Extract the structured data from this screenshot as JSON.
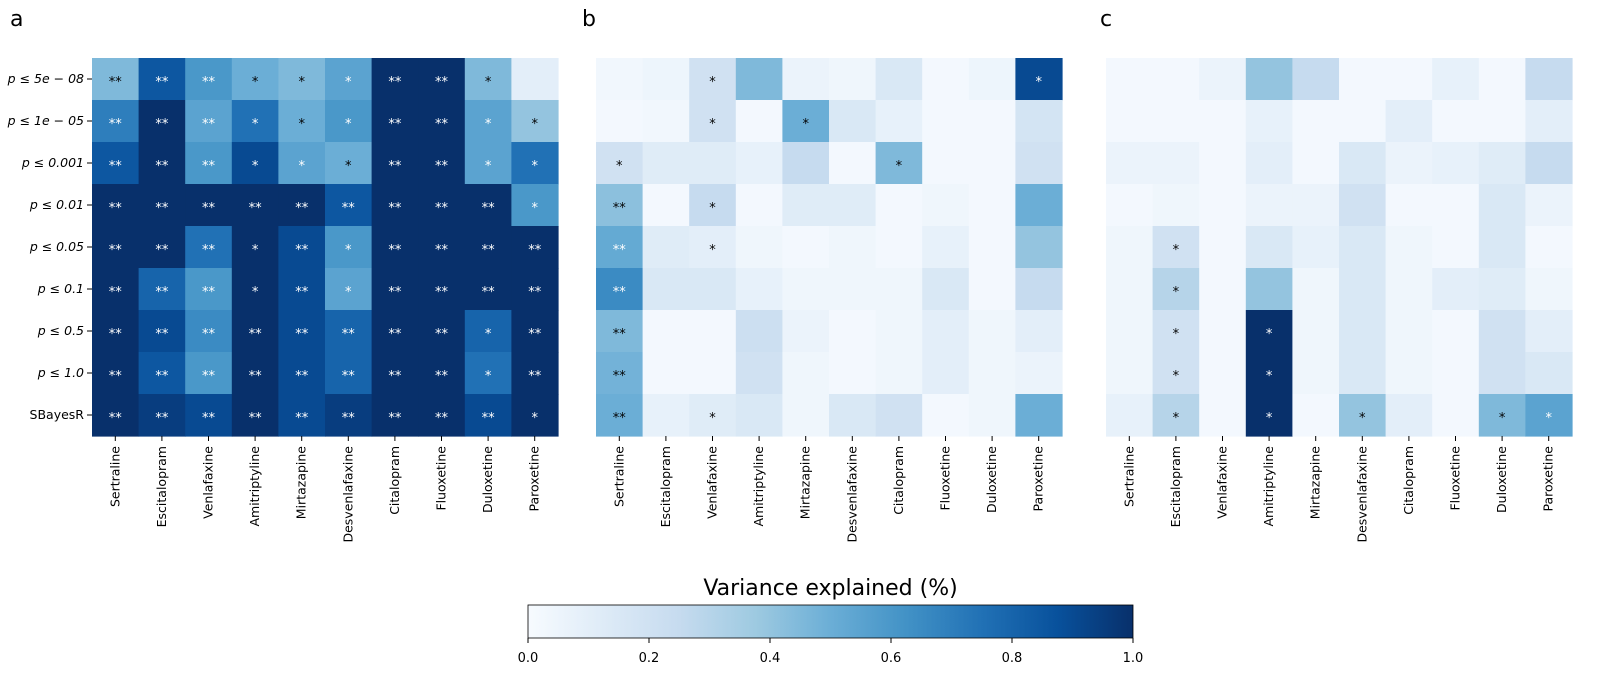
{
  "panel_labels": [
    "a",
    "b",
    "c"
  ],
  "colorbar": {
    "title": "Variance explained (%)",
    "ticks": [
      "0.0",
      "0.2",
      "0.4",
      "0.6",
      "0.8",
      "1.0"
    ],
    "min": 0,
    "max": 1,
    "colormap": [
      "#f7fbff",
      "#deebf7",
      "#c6dbef",
      "#9ecae1",
      "#6baed6",
      "#4292c6",
      "#2171b5",
      "#08519c",
      "#08306b"
    ]
  },
  "chart_data": [
    {
      "type": "heatmap",
      "panel": "a",
      "columns": [
        "Sertraline",
        "Escitalopram",
        "Venlafaxine",
        "Amitriptyline",
        "Mirtazapine",
        "Desvenlafaxine",
        "Citalopram",
        "Fluoxetine",
        "Duloxetine",
        "Paroxetine"
      ],
      "rows": [
        "p ≤ 5e − 08",
        "p ≤ 1e − 05",
        "p ≤ 0.001",
        "p ≤ 0.01",
        "p ≤ 0.05",
        "p ≤ 0.1",
        "p ≤ 0.5",
        "p ≤ 1.0",
        "SBayesR"
      ],
      "values": [
        [
          0.45,
          0.85,
          0.6,
          0.5,
          0.45,
          0.55,
          1.0,
          1.0,
          0.45,
          0.1
        ],
        [
          0.7,
          1.0,
          0.55,
          0.75,
          0.5,
          0.6,
          1.0,
          1.0,
          0.55,
          0.4
        ],
        [
          0.85,
          1.0,
          0.6,
          0.9,
          0.55,
          0.5,
          1.0,
          1.0,
          0.55,
          0.75
        ],
        [
          1.0,
          1.0,
          1.0,
          1.0,
          1.0,
          0.85,
          1.0,
          1.0,
          1.0,
          0.6
        ],
        [
          1.0,
          1.0,
          0.75,
          1.0,
          0.9,
          0.6,
          1.0,
          1.0,
          1.0,
          1.0
        ],
        [
          1.0,
          0.8,
          0.6,
          1.0,
          0.9,
          0.55,
          1.0,
          1.0,
          1.0,
          1.0
        ],
        [
          1.0,
          0.9,
          0.65,
          1.0,
          0.9,
          0.8,
          1.0,
          1.0,
          0.8,
          1.0
        ],
        [
          1.0,
          0.85,
          0.6,
          1.0,
          0.9,
          0.8,
          1.0,
          1.0,
          0.75,
          1.0
        ],
        [
          1.0,
          0.95,
          0.9,
          1.0,
          0.9,
          0.95,
          1.0,
          1.0,
          0.9,
          1.0
        ]
      ],
      "annotations": [
        [
          "**",
          "**",
          "**",
          "*",
          "*",
          "*",
          "**",
          "**",
          "*",
          ""
        ],
        [
          "**",
          "**",
          "**",
          "*",
          "*",
          "*",
          "**",
          "**",
          "*",
          "*"
        ],
        [
          "**",
          "**",
          "**",
          "*",
          "*",
          "*",
          "**",
          "**",
          "*",
          "*"
        ],
        [
          "**",
          "**",
          "**",
          "**",
          "**",
          "**",
          "**",
          "**",
          "**",
          "*"
        ],
        [
          "**",
          "**",
          "**",
          "*",
          "**",
          "*",
          "**",
          "**",
          "**",
          "**"
        ],
        [
          "**",
          "**",
          "**",
          "*",
          "**",
          "*",
          "**",
          "**",
          "**",
          "**"
        ],
        [
          "**",
          "**",
          "**",
          "**",
          "**",
          "**",
          "**",
          "**",
          "*",
          "**"
        ],
        [
          "**",
          "**",
          "**",
          "**",
          "**",
          "**",
          "**",
          "**",
          "*",
          "**"
        ],
        [
          "**",
          "**",
          "**",
          "**",
          "**",
          "**",
          "**",
          "**",
          "**",
          "*"
        ]
      ]
    },
    {
      "type": "heatmap",
      "panel": "b",
      "columns": [
        "Sertraline",
        "Escitalopram",
        "Venlafaxine",
        "Amitriptyline",
        "Mirtazapine",
        "Desvenlafaxine",
        "Citalopram",
        "Fluoxetine",
        "Duloxetine",
        "Paroxetine"
      ],
      "rows": [
        "p ≤ 5e − 08",
        "p ≤ 1e − 05",
        "p ≤ 0.001",
        "p ≤ 0.01",
        "p ≤ 0.05",
        "p ≤ 0.1",
        "p ≤ 0.5",
        "p ≤ 1.0",
        "SBayesR"
      ],
      "values": [
        [
          0.03,
          0.05,
          0.2,
          0.45,
          0.06,
          0.04,
          0.15,
          0.02,
          0.05,
          0.9
        ],
        [
          0.02,
          0.03,
          0.2,
          0.02,
          0.5,
          0.15,
          0.08,
          0.02,
          0.02,
          0.18
        ],
        [
          0.2,
          0.12,
          0.12,
          0.08,
          0.25,
          0.02,
          0.45,
          0.02,
          0.02,
          0.2
        ],
        [
          0.42,
          0.02,
          0.25,
          0.02,
          0.12,
          0.12,
          0.02,
          0.04,
          0.02,
          0.5
        ],
        [
          0.52,
          0.12,
          0.1,
          0.04,
          0.02,
          0.04,
          0.02,
          0.08,
          0.02,
          0.4
        ],
        [
          0.65,
          0.15,
          0.15,
          0.08,
          0.04,
          0.04,
          0.04,
          0.15,
          0.02,
          0.25
        ],
        [
          0.45,
          0.02,
          0.02,
          0.22,
          0.06,
          0.02,
          0.04,
          0.1,
          0.04,
          0.1
        ],
        [
          0.48,
          0.02,
          0.02,
          0.2,
          0.04,
          0.02,
          0.04,
          0.1,
          0.04,
          0.06
        ],
        [
          0.5,
          0.08,
          0.12,
          0.15,
          0.04,
          0.15,
          0.2,
          0.02,
          0.04,
          0.5
        ]
      ],
      "annotations": [
        [
          "",
          "",
          "*",
          "",
          "",
          "",
          "",
          "",
          "",
          "*"
        ],
        [
          "",
          "",
          "*",
          "",
          "*",
          "",
          "",
          "",
          "",
          ""
        ],
        [
          "*",
          "",
          "",
          "",
          "",
          "",
          "*",
          "",
          "",
          ""
        ],
        [
          "**",
          "",
          "*",
          "",
          "",
          "",
          "",
          "",
          "",
          ""
        ],
        [
          "**",
          "",
          "*",
          "",
          "",
          "",
          "",
          "",
          "",
          ""
        ],
        [
          "**",
          "",
          "",
          "",
          "",
          "",
          "",
          "",
          "",
          ""
        ],
        [
          "**",
          "",
          "",
          "",
          "",
          "",
          "",
          "",
          "",
          ""
        ],
        [
          "**",
          "",
          "",
          "",
          "",
          "",
          "",
          "",
          "",
          ""
        ],
        [
          "**",
          "",
          "*",
          "",
          "",
          "",
          "",
          "",
          "",
          ""
        ]
      ]
    },
    {
      "type": "heatmap",
      "panel": "c",
      "columns": [
        "Sertraline",
        "Escitalopram",
        "Venlafaxine",
        "Amitriptyline",
        "Mirtazapine",
        "Desvenlafaxine",
        "Citalopram",
        "Fluoxetine",
        "Duloxetine",
        "Paroxetine"
      ],
      "rows": [
        "p ≤ 5e − 08",
        "p ≤ 1e − 05",
        "p ≤ 0.001",
        "p ≤ 0.01",
        "p ≤ 0.05",
        "p ≤ 0.1",
        "p ≤ 0.5",
        "p ≤ 1.0",
        "SBayesR"
      ],
      "values": [
        [
          0.02,
          0.02,
          0.06,
          0.4,
          0.25,
          0.02,
          0.02,
          0.08,
          0.02,
          0.25
        ],
        [
          0.02,
          0.02,
          0.02,
          0.08,
          0.02,
          0.02,
          0.1,
          0.02,
          0.02,
          0.1
        ],
        [
          0.06,
          0.06,
          0.02,
          0.1,
          0.02,
          0.15,
          0.06,
          0.08,
          0.12,
          0.25
        ],
        [
          0.02,
          0.04,
          0.02,
          0.06,
          0.06,
          0.2,
          0.02,
          0.02,
          0.15,
          0.06
        ],
        [
          0.04,
          0.2,
          0.02,
          0.15,
          0.08,
          0.15,
          0.04,
          0.02,
          0.15,
          0.02
        ],
        [
          0.04,
          0.3,
          0.02,
          0.4,
          0.04,
          0.15,
          0.04,
          0.1,
          0.12,
          0.04
        ],
        [
          0.04,
          0.2,
          0.02,
          1.0,
          0.04,
          0.15,
          0.04,
          0.02,
          0.2,
          0.1
        ],
        [
          0.04,
          0.2,
          0.02,
          1.0,
          0.04,
          0.15,
          0.04,
          0.02,
          0.2,
          0.15
        ],
        [
          0.08,
          0.3,
          0.02,
          1.0,
          0.02,
          0.4,
          0.1,
          0.02,
          0.45,
          0.55
        ]
      ],
      "annotations": [
        [
          "",
          "",
          "",
          "",
          "",
          "",
          "",
          "",
          "",
          ""
        ],
        [
          "",
          "",
          "",
          "",
          "",
          "",
          "",
          "",
          "",
          ""
        ],
        [
          "",
          "",
          "",
          "",
          "",
          "",
          "",
          "",
          "",
          ""
        ],
        [
          "",
          "",
          "",
          "",
          "",
          "",
          "",
          "",
          "",
          ""
        ],
        [
          "",
          "*",
          "",
          "",
          "",
          "",
          "",
          "",
          "",
          ""
        ],
        [
          "",
          "*",
          "",
          "",
          "",
          "",
          "",
          "",
          "",
          ""
        ],
        [
          "",
          "*",
          "",
          "*",
          "",
          "",
          "",
          "",
          "",
          ""
        ],
        [
          "",
          "*",
          "",
          "*",
          "",
          "",
          "",
          "",
          "",
          ""
        ],
        [
          "",
          "*",
          "",
          "*",
          "",
          "*",
          "",
          "",
          "*",
          "*"
        ]
      ]
    }
  ]
}
